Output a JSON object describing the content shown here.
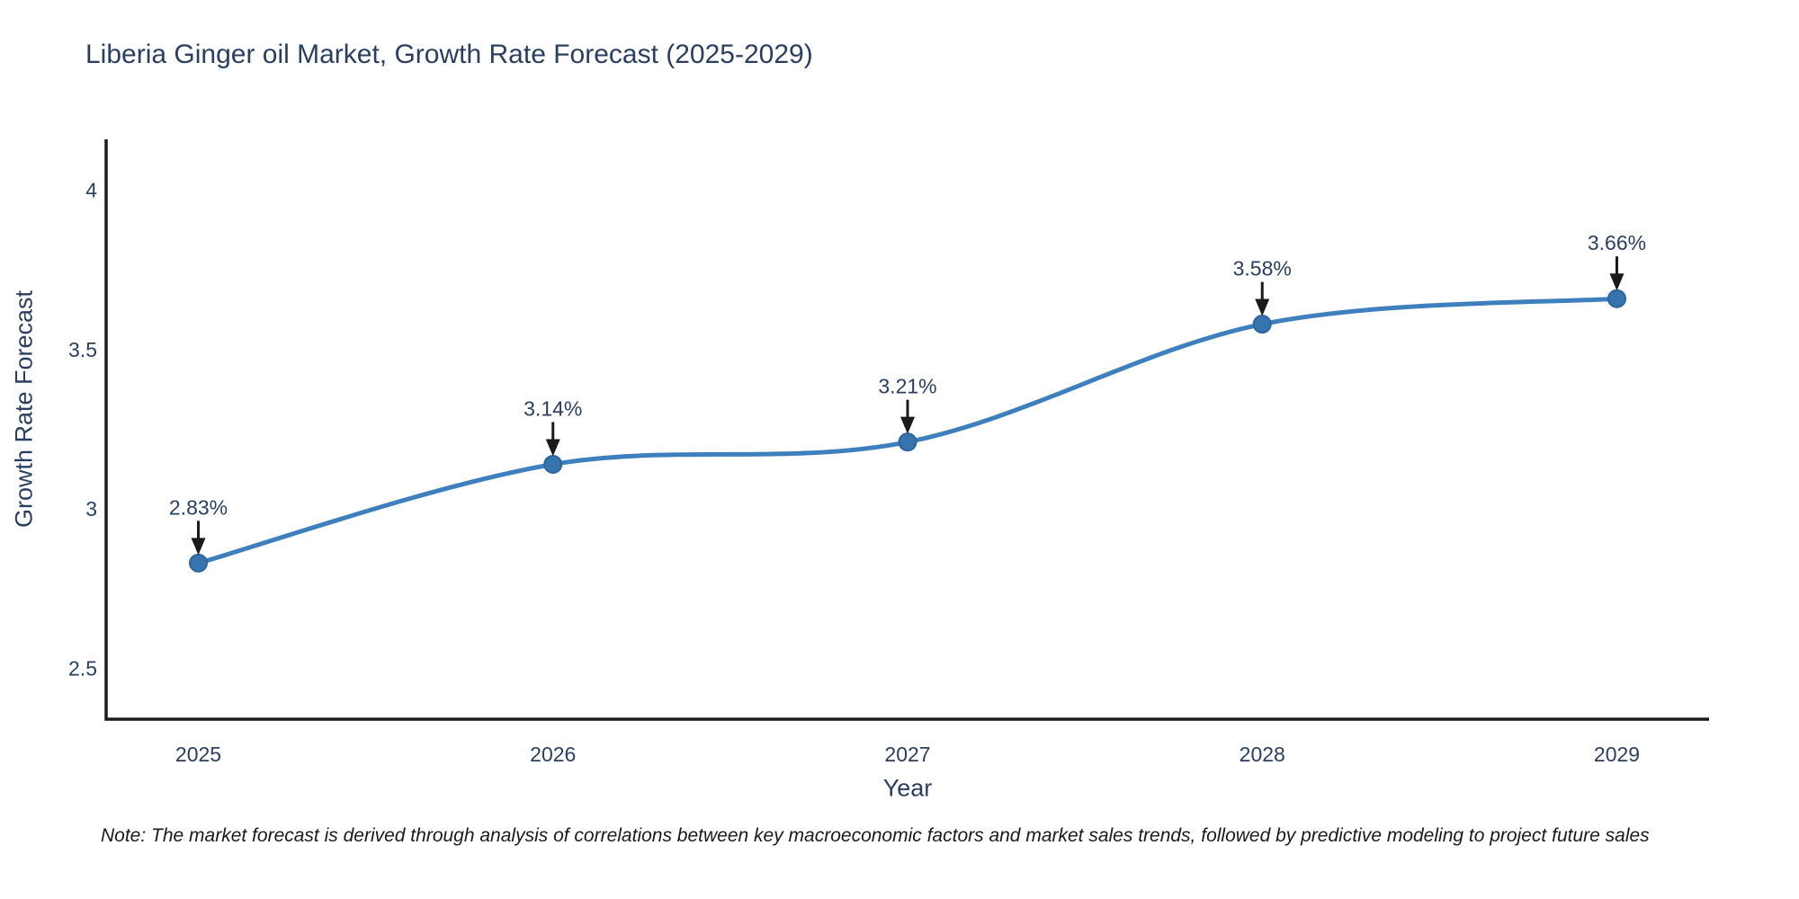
{
  "page": {
    "background": "#ffffff"
  },
  "chart_data": {
    "type": "line",
    "title": "Liberia Ginger oil Market, Growth Rate Forecast (2025-2029)",
    "xlabel": "Year",
    "ylabel": "Growth Rate Forecast",
    "x": [
      2025,
      2026,
      2027,
      2028,
      2029
    ],
    "values": [
      2.83,
      3.14,
      3.21,
      3.58,
      3.66
    ],
    "point_labels": [
      "2.83%",
      "3.14%",
      "3.21%",
      "3.58%",
      "3.66%"
    ],
    "xtick_labels": [
      "2025",
      "2026",
      "2027",
      "2028",
      "2029"
    ],
    "yticks": [
      2.5,
      3,
      3.5,
      4
    ],
    "ytick_labels": [
      "2.5",
      "3",
      "3.5",
      "4"
    ],
    "xlim": [
      2024.74,
      2029.26
    ],
    "ylim": [
      2.34,
      4.16
    ],
    "grid": false,
    "legend": "none",
    "line_shape": "spline",
    "colors": {
      "line": "#3e7fbd",
      "marker": "#3674ad",
      "marker_edge": "#2d659c",
      "annotation_arrow": "#1a1a1a",
      "axis_line": "#1c1c1c",
      "text": "#2a3f5f",
      "note_text": "#1a1a1a"
    },
    "style": {
      "line_width": 5,
      "marker_radius": 9.5,
      "axis_line_width": 3.5,
      "tick_font_size": 23,
      "annotation_font_size": 23
    }
  },
  "note": {
    "text": "Note: The market forecast is derived through analysis of correlations between key macroeconomic factors and market sales trends, followed by predictive modeling to project future sales"
  }
}
